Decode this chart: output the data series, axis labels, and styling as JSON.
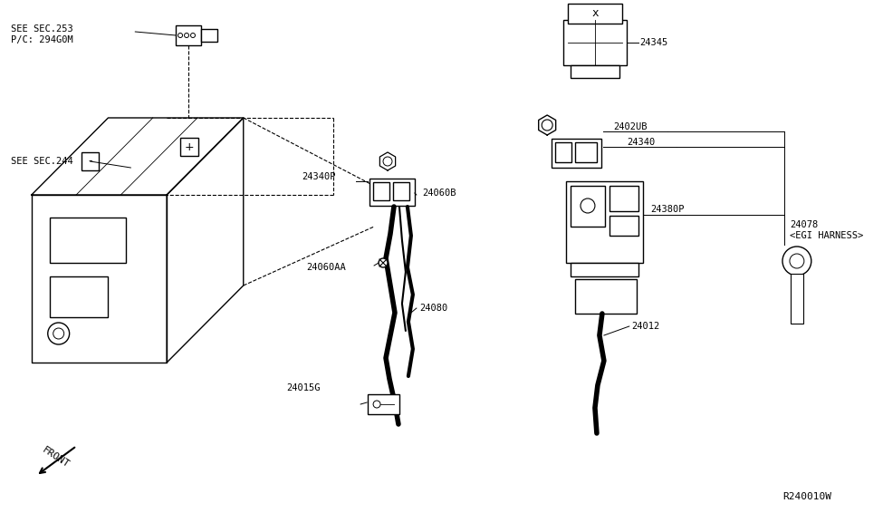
{
  "bg_color": "#ffffff",
  "line_color": "#000000",
  "fig_width": 9.75,
  "fig_height": 5.66,
  "diagram_ref": "R240010W",
  "labels": {
    "see_sec_253": "SEE SEC.253",
    "pc_294g0m": "P/C: 294G0M",
    "see_sec_244": "SEE SEC.244",
    "part_24345": "24345",
    "part_2402ub": "2402UB",
    "part_24340": "24340",
    "part_24340p": "24340P",
    "part_24060b": "24060B",
    "part_24380p": "24380P",
    "part_24078": "24078",
    "egi_harness": "<EGI HARNESS>",
    "part_24060aa": "24060AA",
    "part_24080": "24080",
    "part_24012": "24012",
    "part_24015g": "24015G",
    "front_label": "FRONT"
  }
}
